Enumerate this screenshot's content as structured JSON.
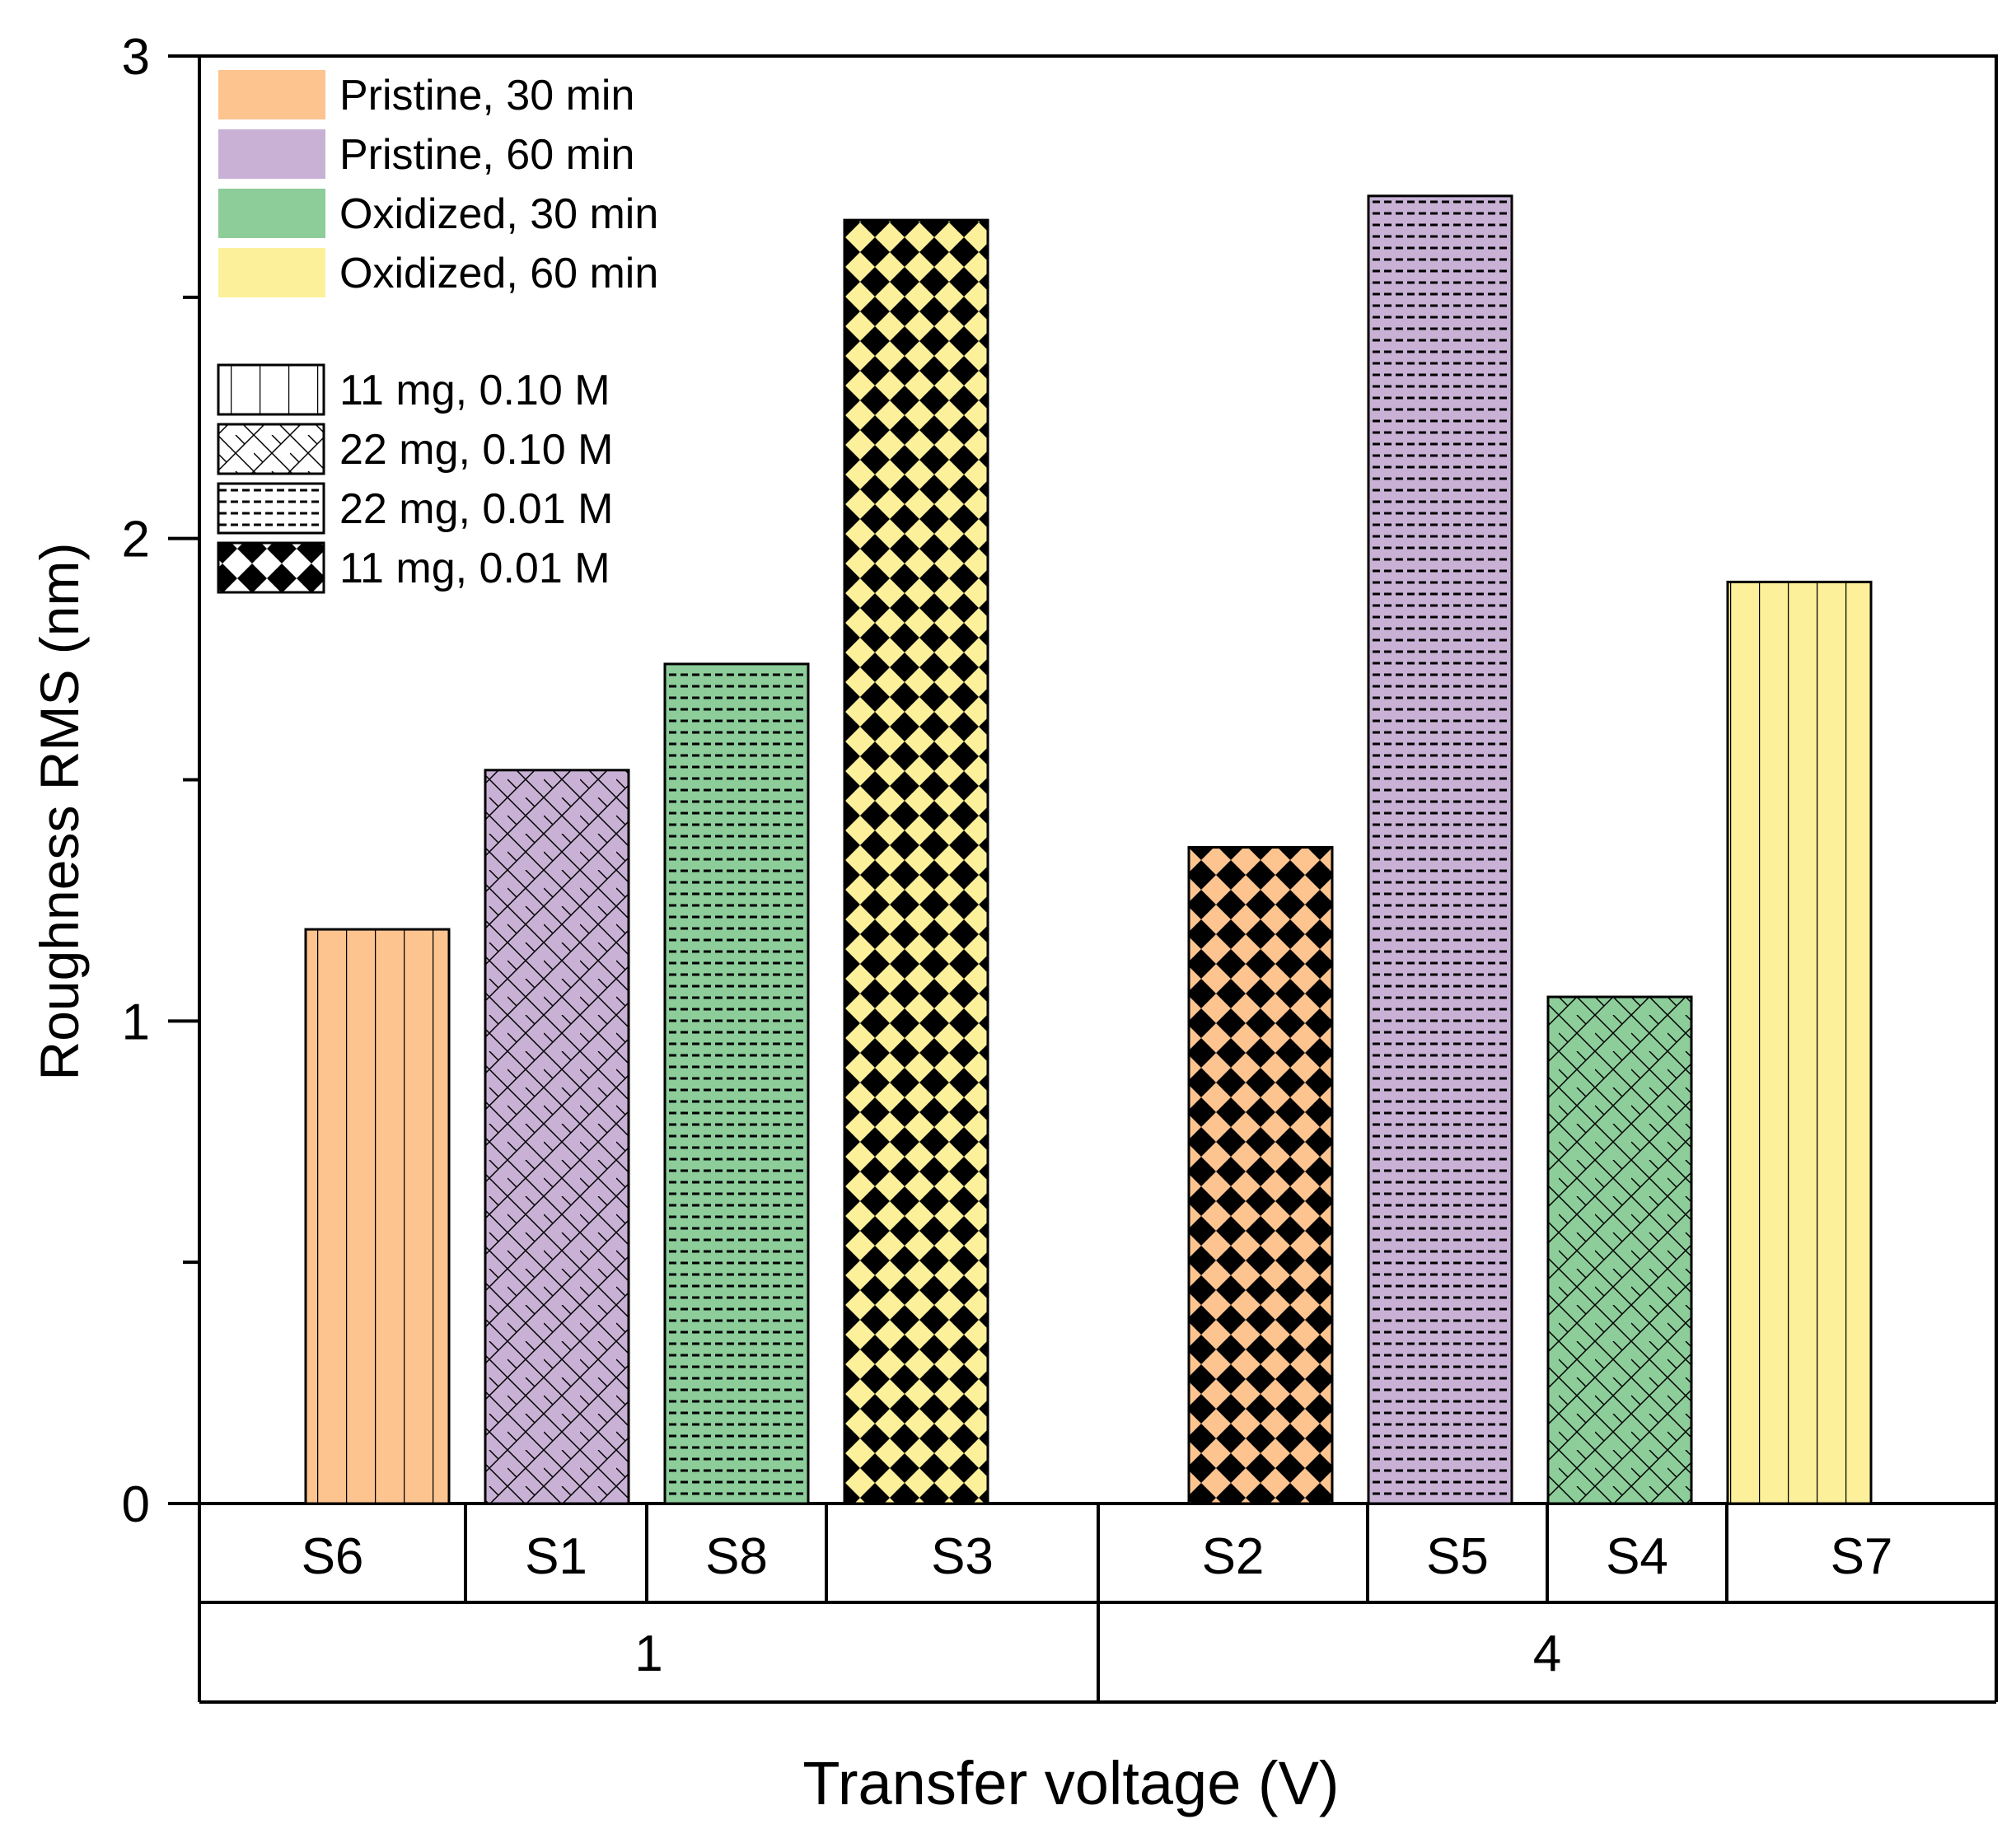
{
  "chart_data": {
    "type": "bar",
    "ylabel": "Roughness RMS (nm)",
    "xlabel": "Transfer voltage (V)",
    "ylim": [
      0,
      3
    ],
    "yticks": [
      "0",
      "1",
      "2",
      "3"
    ],
    "groups": [
      {
        "label": "1",
        "bars": [
          {
            "label": "S6",
            "value": 1.19,
            "color_series": 0,
            "pattern_series": 0
          },
          {
            "label": "S1",
            "value": 1.52,
            "color_series": 1,
            "pattern_series": 1
          },
          {
            "label": "S8",
            "value": 1.74,
            "color_series": 2,
            "pattern_series": 2
          },
          {
            "label": "S3",
            "value": 2.66,
            "color_series": 3,
            "pattern_series": 3
          }
        ]
      },
      {
        "label": "4",
        "bars": [
          {
            "label": "S2",
            "value": 1.36,
            "color_series": 0,
            "pattern_series": 3
          },
          {
            "label": "S5",
            "value": 2.71,
            "color_series": 1,
            "pattern_series": 2
          },
          {
            "label": "S4",
            "value": 1.05,
            "color_series": 2,
            "pattern_series": 1
          },
          {
            "label": "S7",
            "value": 1.91,
            "color_series": 3,
            "pattern_series": 0
          }
        ]
      }
    ],
    "legend_colors": [
      {
        "label": "Pristine, 30 min",
        "color": "#FDC490"
      },
      {
        "label": "Pristine, 60 min",
        "color": "#C8B1D5"
      },
      {
        "label": "Oxidized, 30 min",
        "color": "#8CCD9A"
      },
      {
        "label": "Oxidized, 60 min",
        "color": "#FCF09A"
      }
    ],
    "legend_patterns": [
      {
        "label": "11 mg, 0.10 M",
        "pattern": "vertical-lines"
      },
      {
        "label": "22 mg, 0.10 M",
        "pattern": "diagonal-brick"
      },
      {
        "label": "22 mg, 0.01 M",
        "pattern": "dashed-lines"
      },
      {
        "label": "11 mg, 0.01 M",
        "pattern": "checkerboard"
      }
    ],
    "legend_position": "top-left"
  }
}
